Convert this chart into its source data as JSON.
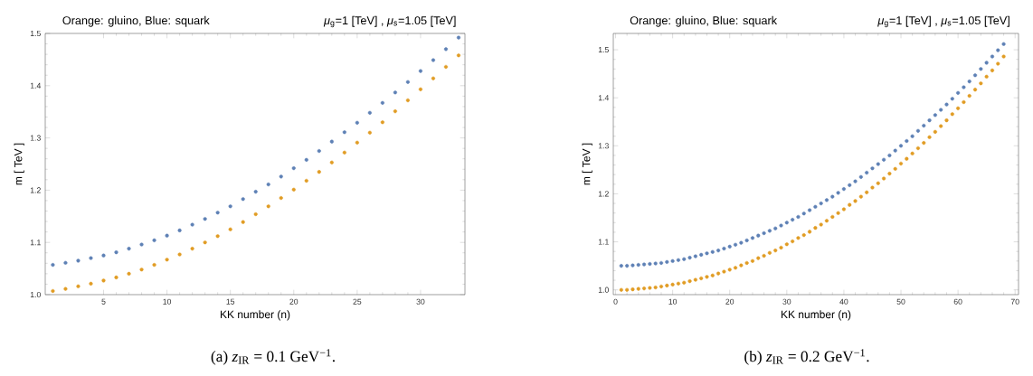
{
  "chart_data": [
    {
      "type": "scatter",
      "title": "Orange: gluino,  Blue: squark",
      "subtitle": "*μ*$_{g}$=1 [TeV] , *μ*$_{s}$=1.05 [TeV]",
      "xlabel": "KK number (n)",
      "ylabel": "m [ TeV ]",
      "annotations": [
        "(a) *z*$_{IR}$ = 0.1 GeV$^{−1}$."
      ],
      "x": [
        1,
        2,
        3,
        4,
        5,
        6,
        7,
        8,
        9,
        10,
        11,
        12,
        13,
        14,
        15,
        16,
        17,
        18,
        19,
        20,
        21,
        22,
        23,
        24,
        25,
        26,
        27,
        28,
        29,
        30,
        31,
        32,
        33
      ],
      "series": [
        {
          "color": "#5e81b5",
          "values": [
            1.057,
            1.061,
            1.065,
            1.07,
            1.075,
            1.081,
            1.088,
            1.096,
            1.104,
            1.113,
            1.123,
            1.134,
            1.145,
            1.157,
            1.169,
            1.183,
            1.197,
            1.211,
            1.226,
            1.242,
            1.258,
            1.275,
            1.293,
            1.311,
            1.329,
            1.348,
            1.367,
            1.387,
            1.407,
            1.428,
            1.449,
            1.47,
            1.492
          ]
        },
        {
          "color": "#e19c24",
          "values": [
            1.007,
            1.011,
            1.016,
            1.021,
            1.027,
            1.033,
            1.04,
            1.048,
            1.057,
            1.067,
            1.077,
            1.088,
            1.1,
            1.112,
            1.125,
            1.139,
            1.154,
            1.169,
            1.185,
            1.201,
            1.218,
            1.235,
            1.253,
            1.272,
            1.291,
            1.31,
            1.33,
            1.351,
            1.372,
            1.393,
            1.414,
            1.436,
            1.458
          ]
        }
      ],
      "xlim": [
        0.4,
        33.5
      ],
      "ylim": [
        1.0,
        1.5
      ],
      "xticks": [
        5,
        10,
        15,
        20,
        25,
        30
      ],
      "yticks": [
        {
          "value": 1.0,
          "label": "1.0"
        },
        1.1,
        1.2,
        1.3,
        1.4,
        1.5
      ],
      "marker": "circle",
      "grid": false
    },
    {
      "type": "scatter",
      "title": "Orange: gluino,  Blue: squark",
      "subtitle": "*μ*$_{g}$=1 [TeV] , *μ*$_{s}$=1.05 [TeV]",
      "xlabel": "KK number (n)",
      "ylabel": "m [ TeV ]",
      "annotations": [
        "(b) *z*$_{IR}$ = 0.2 GeV$^{−1}$."
      ],
      "x": [
        1,
        2,
        3,
        4,
        5,
        6,
        7,
        8,
        9,
        10,
        11,
        12,
        13,
        14,
        15,
        16,
        17,
        18,
        19,
        20,
        21,
        22,
        23,
        24,
        25,
        26,
        27,
        28,
        29,
        30,
        31,
        32,
        33,
        34,
        35,
        36,
        37,
        38,
        39,
        40,
        41,
        42,
        43,
        44,
        45,
        46,
        47,
        48,
        49,
        50,
        51,
        52,
        53,
        54,
        55,
        56,
        57,
        58,
        59,
        60,
        61,
        62,
        63,
        64,
        65,
        66,
        67,
        68
      ],
      "series": [
        {
          "color": "#5e81b5",
          "values": [
            1.05,
            1.05,
            1.051,
            1.052,
            1.053,
            1.054,
            1.055,
            1.056,
            1.058,
            1.06,
            1.062,
            1.064,
            1.067,
            1.07,
            1.073,
            1.076,
            1.079,
            1.082,
            1.086,
            1.09,
            1.094,
            1.098,
            1.103,
            1.108,
            1.113,
            1.118,
            1.123,
            1.128,
            1.134,
            1.14,
            1.146,
            1.152,
            1.159,
            1.166,
            1.173,
            1.18,
            1.187,
            1.194,
            1.202,
            1.21,
            1.218,
            1.226,
            1.235,
            1.244,
            1.253,
            1.262,
            1.271,
            1.28,
            1.29,
            1.3,
            1.31,
            1.32,
            1.331,
            1.342,
            1.353,
            1.364,
            1.375,
            1.386,
            1.398,
            1.41,
            1.422,
            1.434,
            1.447,
            1.46,
            1.473,
            1.486,
            1.499,
            1.512
          ]
        },
        {
          "color": "#e19c24",
          "values": [
            1.0,
            1.0,
            1.001,
            1.002,
            1.003,
            1.004,
            1.005,
            1.007,
            1.009,
            1.011,
            1.013,
            1.015,
            1.018,
            1.021,
            1.024,
            1.027,
            1.03,
            1.034,
            1.038,
            1.042,
            1.046,
            1.051,
            1.056,
            1.06,
            1.066,
            1.071,
            1.077,
            1.082,
            1.088,
            1.095,
            1.101,
            1.108,
            1.114,
            1.121,
            1.129,
            1.136,
            1.144,
            1.152,
            1.16,
            1.168,
            1.177,
            1.185,
            1.194,
            1.203,
            1.213,
            1.222,
            1.232,
            1.242,
            1.252,
            1.263,
            1.273,
            1.284,
            1.295,
            1.306,
            1.318,
            1.329,
            1.341,
            1.353,
            1.366,
            1.378,
            1.391,
            1.404,
            1.417,
            1.43,
            1.444,
            1.457,
            1.471,
            1.486
          ]
        }
      ],
      "xlim": [
        -0.4,
        70.6
      ],
      "ylim": [
        0.99,
        1.534
      ],
      "xticks": [
        0,
        10,
        20,
        30,
        40,
        50,
        60,
        70
      ],
      "yticks": [
        {
          "value": 1.0,
          "label": "1.0"
        },
        1.1,
        1.2,
        1.3,
        1.4,
        1.5
      ],
      "marker": "circle",
      "grid": false
    }
  ]
}
